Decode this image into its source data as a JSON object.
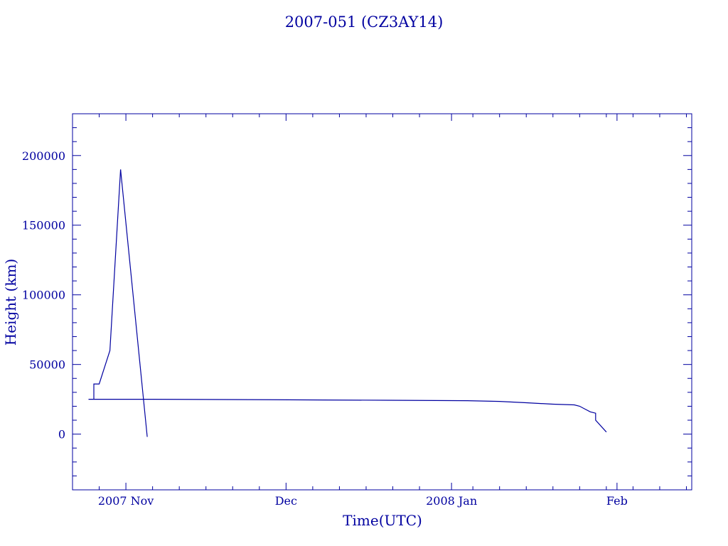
{
  "chart_data": {
    "type": "line",
    "title": "2007-051 (CZ3AY14)",
    "xlabel": "Time(UTC)",
    "ylabel": "Height (km)",
    "x_axis": {
      "type": "date",
      "min": "2007-10-22",
      "max": "2008-02-15",
      "major_ticks": [
        {
          "date": "2007-11-01",
          "label": "2007 Nov"
        },
        {
          "date": "2007-12-01",
          "label": "Dec"
        },
        {
          "date": "2008-01-01",
          "label": "2008 Jan"
        },
        {
          "date": "2008-02-01",
          "label": "Feb"
        }
      ],
      "minor_tick_days": 5
    },
    "y_axis": {
      "min": -40000,
      "max": 230000,
      "major_ticks": [
        0,
        50000,
        100000,
        150000,
        200000
      ],
      "minor_step": 10000
    },
    "grid": false,
    "series": [
      {
        "points": [
          {
            "x": "2007-10-31",
            "y": 190000
          },
          {
            "x": "2007-11-05",
            "y": -2000
          }
        ]
      },
      {
        "points": [
          {
            "x": "2007-10-31",
            "y": 190000
          },
          {
            "x": "2007-10-29",
            "y": 60000
          },
          {
            "x": "2007-10-27",
            "y": 36000
          },
          {
            "x": "2007-10-26",
            "y": 36000
          },
          {
            "x": "2007-10-26",
            "y": 25000
          },
          {
            "x": "2007-10-25",
            "y": 25000
          },
          {
            "x": "2007-11-06",
            "y": 25000
          },
          {
            "x": "2007-11-20",
            "y": 24800
          },
          {
            "x": "2007-12-08",
            "y": 24500
          },
          {
            "x": "2007-12-20",
            "y": 24300
          },
          {
            "x": "2008-01-04",
            "y": 24000
          },
          {
            "x": "2008-01-10",
            "y": 23500
          },
          {
            "x": "2008-01-15",
            "y": 22500
          },
          {
            "x": "2008-01-20",
            "y": 21500
          },
          {
            "x": "2008-01-24",
            "y": 21000
          },
          {
            "x": "2008-01-25",
            "y": 20000
          },
          {
            "x": "2008-01-26",
            "y": 18000
          },
          {
            "x": "2008-01-27",
            "y": 16000
          },
          {
            "x": "2008-01-28",
            "y": 15000
          },
          {
            "x": "2008-01-28",
            "y": 10000
          },
          {
            "x": "2008-01-30",
            "y": 1500
          }
        ]
      }
    ]
  }
}
